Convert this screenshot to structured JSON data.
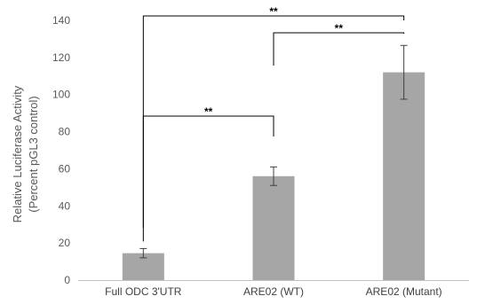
{
  "chart_data": {
    "type": "bar",
    "categories": [
      "Full ODC 3'UTR",
      "ARE02 (WT)",
      "ARE02 (Mutant)"
    ],
    "values": [
      14.5,
      56,
      112
    ],
    "errors": [
      2.5,
      5,
      14.5
    ],
    "ylabel_line1": "Relative Luciferase Activity",
    "ylabel_line2": "(Percent pGL3 control)",
    "ylim": [
      0,
      140
    ],
    "yticks": [
      0,
      20,
      40,
      60,
      80,
      100,
      120,
      140
    ],
    "bar_color": "#a6a6a6",
    "grid": false,
    "significance": [
      {
        "from": 0,
        "to": 1,
        "label": "**"
      },
      {
        "from": 1,
        "to": 2,
        "label": "**"
      },
      {
        "from": 0,
        "to": 2,
        "label": "**"
      }
    ]
  }
}
